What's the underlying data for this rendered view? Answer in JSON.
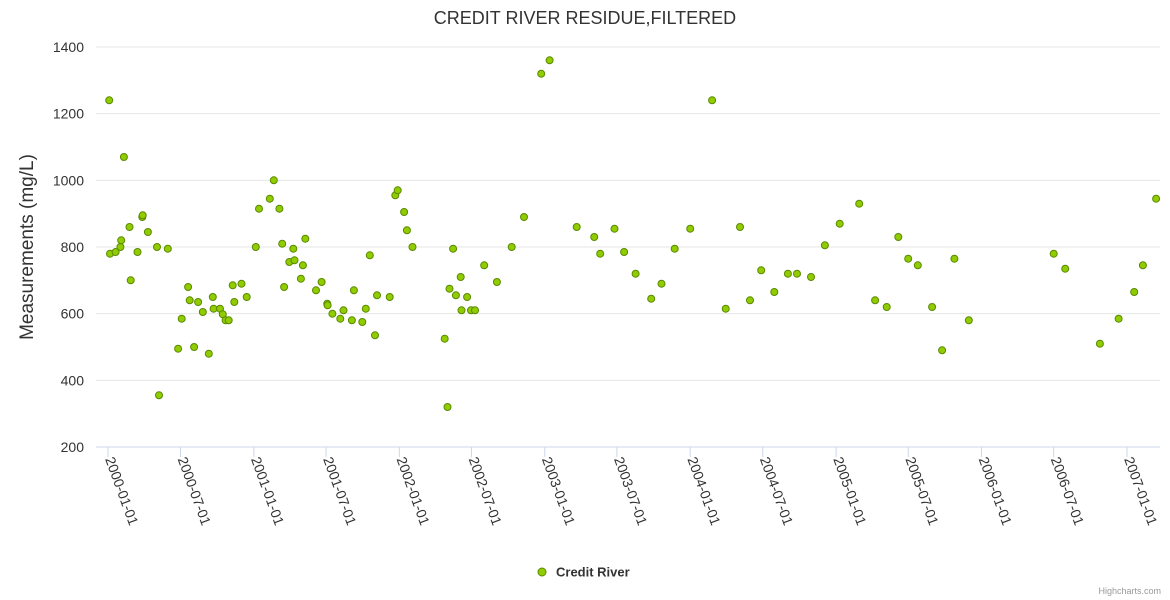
{
  "chart_data": {
    "type": "scatter",
    "title": "CREDIT RIVER RESIDUE,FILTERED",
    "xlabel": "",
    "ylabel": "Measurements (mg/L)",
    "ylim": [
      200,
      1400
    ],
    "yticks": [
      200,
      400,
      600,
      800,
      1000,
      1200,
      1400
    ],
    "xticks": [
      "2000-01-01",
      "2000-07-01",
      "2001-01-01",
      "2001-07-01",
      "2002-01-01",
      "2002-07-01",
      "2003-01-01",
      "2003-07-01",
      "2004-01-01",
      "2004-07-01",
      "2005-01-01",
      "2005-07-01",
      "2006-01-01",
      "2006-07-01",
      "2007-01-01"
    ],
    "grid": "horizontal",
    "legend_position": "bottom-center",
    "marker_color": "#90cc00",
    "marker_stroke": "#5a8a00",
    "series": [
      {
        "name": "Credit River",
        "points": [
          [
            "2000-01-04",
            1240
          ],
          [
            "2000-01-06",
            780
          ],
          [
            "2000-01-20",
            785
          ],
          [
            "2000-02-01",
            800
          ],
          [
            "2000-02-03",
            820
          ],
          [
            "2000-02-10",
            1070
          ],
          [
            "2000-02-24",
            860
          ],
          [
            "2000-02-27",
            700
          ],
          [
            "2000-03-15",
            785
          ],
          [
            "2000-03-27",
            890
          ],
          [
            "2000-03-28",
            895
          ],
          [
            "2000-04-10",
            845
          ],
          [
            "2000-05-03",
            800
          ],
          [
            "2000-05-08",
            355
          ],
          [
            "2000-05-30",
            795
          ],
          [
            "2000-06-25",
            495
          ],
          [
            "2000-07-04",
            585
          ],
          [
            "2000-07-20",
            680
          ],
          [
            "2000-07-24",
            640
          ],
          [
            "2000-08-04",
            500
          ],
          [
            "2000-08-14",
            635
          ],
          [
            "2000-08-26",
            605
          ],
          [
            "2000-09-10",
            480
          ],
          [
            "2000-09-20",
            650
          ],
          [
            "2000-09-22",
            615
          ],
          [
            "2000-10-08",
            615
          ],
          [
            "2000-10-15",
            598
          ],
          [
            "2000-10-22",
            580
          ],
          [
            "2000-10-30",
            580
          ],
          [
            "2000-11-09",
            685
          ],
          [
            "2000-11-13",
            635
          ],
          [
            "2000-12-01",
            690
          ],
          [
            "2000-12-14",
            650
          ],
          [
            "2001-01-06",
            800
          ],
          [
            "2001-01-14",
            915
          ],
          [
            "2001-02-10",
            945
          ],
          [
            "2001-02-20",
            1000
          ],
          [
            "2001-03-06",
            915
          ],
          [
            "2001-03-13",
            810
          ],
          [
            "2001-03-18",
            680
          ],
          [
            "2001-03-31",
            755
          ],
          [
            "2001-04-10",
            795
          ],
          [
            "2001-04-13",
            760
          ],
          [
            "2001-04-29",
            705
          ],
          [
            "2001-05-04",
            745
          ],
          [
            "2001-05-10",
            825
          ],
          [
            "2001-06-06",
            670
          ],
          [
            "2001-06-20",
            695
          ],
          [
            "2001-07-04",
            630
          ],
          [
            "2001-07-05",
            625
          ],
          [
            "2001-07-17",
            600
          ],
          [
            "2001-08-06",
            585
          ],
          [
            "2001-08-14",
            610
          ],
          [
            "2001-09-04",
            580
          ],
          [
            "2001-09-09",
            670
          ],
          [
            "2001-09-30",
            575
          ],
          [
            "2001-10-09",
            615
          ],
          [
            "2001-10-19",
            775
          ],
          [
            "2001-11-01",
            535
          ],
          [
            "2001-11-06",
            655
          ],
          [
            "2001-12-08",
            650
          ],
          [
            "2001-12-22",
            955
          ],
          [
            "2001-12-28",
            970
          ],
          [
            "2002-01-13",
            905
          ],
          [
            "2002-01-20",
            850
          ],
          [
            "2002-02-03",
            800
          ],
          [
            "2002-04-25",
            525
          ],
          [
            "2002-05-02",
            320
          ],
          [
            "2002-05-07",
            675
          ],
          [
            "2002-05-16",
            795
          ],
          [
            "2002-05-23",
            655
          ],
          [
            "2002-06-04",
            710
          ],
          [
            "2002-06-06",
            610
          ],
          [
            "2002-06-20",
            650
          ],
          [
            "2002-06-30",
            610
          ],
          [
            "2002-07-10",
            610
          ],
          [
            "2002-08-02",
            745
          ],
          [
            "2002-09-03",
            695
          ],
          [
            "2002-10-10",
            800
          ],
          [
            "2002-11-10",
            890
          ],
          [
            "2002-12-23",
            1320
          ],
          [
            "2003-01-13",
            1360
          ],
          [
            "2003-03-22",
            860
          ],
          [
            "2003-05-05",
            830
          ],
          [
            "2003-05-20",
            780
          ],
          [
            "2003-06-25",
            855
          ],
          [
            "2003-07-19",
            785
          ],
          [
            "2003-08-17",
            720
          ],
          [
            "2003-09-25",
            645
          ],
          [
            "2003-10-21",
            690
          ],
          [
            "2003-11-23",
            795
          ],
          [
            "2004-01-01",
            855
          ],
          [
            "2004-02-25",
            1240
          ],
          [
            "2004-03-30",
            615
          ],
          [
            "2004-05-05",
            860
          ],
          [
            "2004-05-30",
            640
          ],
          [
            "2004-06-27",
            730
          ],
          [
            "2004-07-30",
            665
          ],
          [
            "2004-09-02",
            720
          ],
          [
            "2004-09-25",
            720
          ],
          [
            "2004-10-30",
            710
          ],
          [
            "2004-12-04",
            805
          ],
          [
            "2005-01-10",
            870
          ],
          [
            "2005-02-28",
            930
          ],
          [
            "2005-04-09",
            640
          ],
          [
            "2005-05-08",
            620
          ],
          [
            "2005-06-06",
            830
          ],
          [
            "2005-07-01",
            765
          ],
          [
            "2005-07-25",
            745
          ],
          [
            "2005-08-30",
            620
          ],
          [
            "2005-09-24",
            490
          ],
          [
            "2005-10-25",
            765
          ],
          [
            "2005-11-30",
            580
          ],
          [
            "2006-07-01",
            780
          ],
          [
            "2006-07-30",
            735
          ],
          [
            "2006-10-25",
            510
          ],
          [
            "2006-12-11",
            585
          ],
          [
            "2007-01-19",
            665
          ],
          [
            "2007-02-10",
            745
          ],
          [
            "2007-03-15",
            945
          ]
        ]
      }
    ]
  },
  "credits": "Highcharts.com"
}
